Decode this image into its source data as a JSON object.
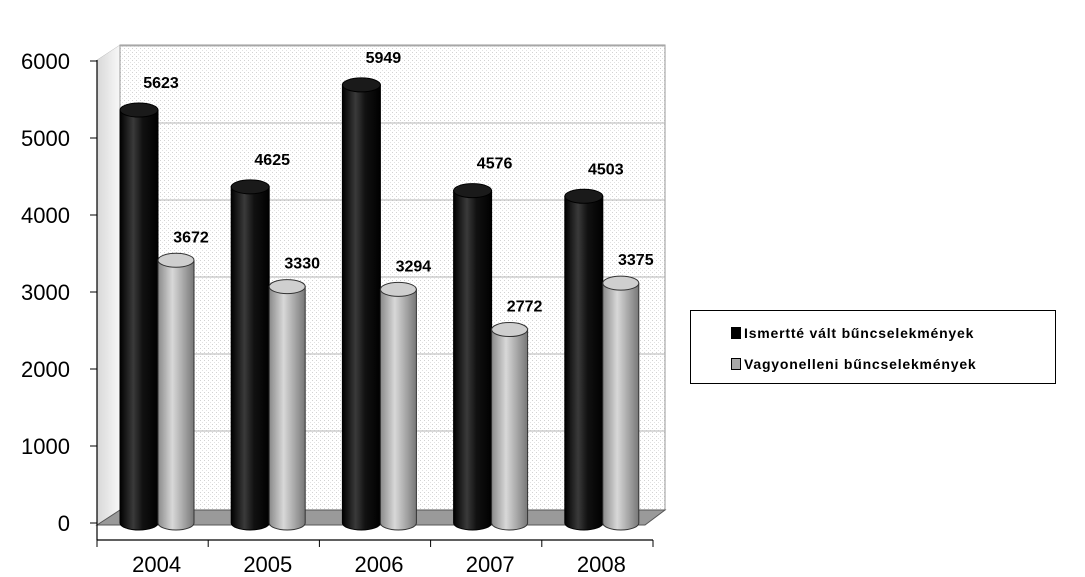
{
  "chart_data": {
    "type": "bar",
    "categories": [
      "2004",
      "2005",
      "2006",
      "2007",
      "2008"
    ],
    "series": [
      {
        "name": "Ismertté vált bűncselekmények",
        "values": [
          5623,
          4625,
          5949,
          4576,
          4503
        ],
        "color": "#000000"
      },
      {
        "name": "Vagyonelleni bűncselekmények",
        "values": [
          3672,
          3330,
          3294,
          2772,
          3375
        ],
        "color": "#a8a8a8"
      }
    ],
    "ylim": [
      0,
      6000
    ],
    "yticks": [
      0,
      1000,
      2000,
      3000,
      4000,
      5000,
      6000
    ],
    "title": "",
    "xlabel": "",
    "ylabel": "",
    "legend_position": "right",
    "grid": true,
    "style": "3d-cylinder"
  }
}
